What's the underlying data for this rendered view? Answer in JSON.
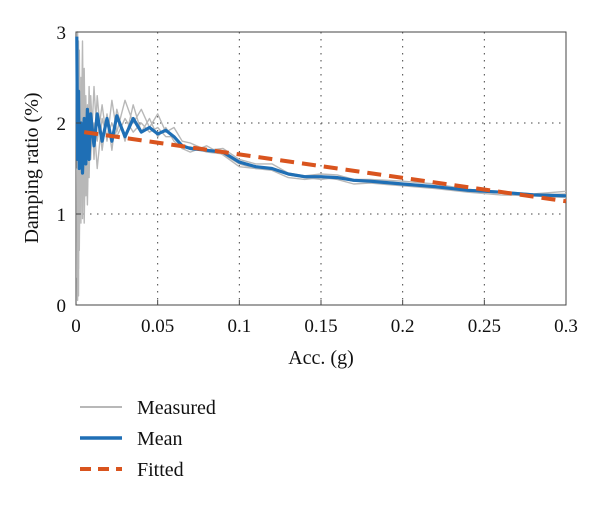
{
  "chart_data": {
    "type": "line",
    "xlabel": "Acc. (g)",
    "ylabel": "Damping ratio (%)",
    "xlim": [
      0,
      0.3
    ],
    "ylim": [
      0,
      3
    ],
    "x_ticks": [
      0,
      0.05,
      0.1,
      0.15,
      0.2,
      0.25,
      0.3
    ],
    "x_tick_labels": [
      "0",
      "0.05",
      "0.1",
      "0.15",
      "0.2",
      "0.25",
      "0.3"
    ],
    "y_ticks": [
      0,
      1,
      2,
      3
    ],
    "y_tick_labels": [
      "0",
      "1",
      "2",
      "3"
    ],
    "grid": "dotted",
    "legend_placement": "below",
    "series": [
      {
        "name": "Measured",
        "role": "measured",
        "color": "#b8b8b8",
        "curves": [
          [
            [
              0.0005,
              0.3
            ],
            [
              0.001,
              3.0
            ],
            [
              0.0015,
              0.1
            ],
            [
              0.002,
              2.8
            ],
            [
              0.003,
              0.9
            ],
            [
              0.004,
              2.6
            ],
            [
              0.005,
              1.1
            ],
            [
              0.006,
              2.3
            ],
            [
              0.007,
              1.3
            ],
            [
              0.008,
              2.4
            ],
            [
              0.009,
              1.6
            ],
            [
              0.011,
              2.4
            ],
            [
              0.013,
              1.8
            ],
            [
              0.016,
              2.2
            ],
            [
              0.019,
              1.8
            ],
            [
              0.022,
              2.25
            ],
            [
              0.025,
              1.9
            ],
            [
              0.03,
              2.25
            ],
            [
              0.035,
              2.0
            ],
            [
              0.04,
              2.15
            ],
            [
              0.045,
              1.95
            ],
            [
              0.05,
              2.1
            ],
            [
              0.055,
              1.9
            ],
            [
              0.06,
              1.95
            ],
            [
              0.065,
              1.8
            ],
            [
              0.07,
              1.78
            ],
            [
              0.08,
              1.7
            ],
            [
              0.09,
              1.72
            ],
            [
              0.1,
              1.6
            ],
            [
              0.11,
              1.55
            ],
            [
              0.12,
              1.55
            ],
            [
              0.13,
              1.45
            ],
            [
              0.14,
              1.42
            ],
            [
              0.15,
              1.44
            ],
            [
              0.16,
              1.43
            ],
            [
              0.17,
              1.38
            ],
            [
              0.18,
              1.38
            ],
            [
              0.2,
              1.36
            ],
            [
              0.22,
              1.33
            ],
            [
              0.24,
              1.27
            ],
            [
              0.26,
              1.25
            ],
            [
              0.28,
              1.22
            ],
            [
              0.3,
              1.25
            ]
          ],
          [
            [
              0.0005,
              1.5
            ],
            [
              0.001,
              0.05
            ],
            [
              0.0015,
              2.9
            ],
            [
              0.002,
              0.6
            ],
            [
              0.003,
              2.5
            ],
            [
              0.004,
              0.95
            ],
            [
              0.005,
              2.6
            ],
            [
              0.006,
              1.2
            ],
            [
              0.007,
              2.2
            ],
            [
              0.008,
              1.4
            ],
            [
              0.009,
              2.3
            ],
            [
              0.011,
              1.6
            ],
            [
              0.013,
              2.3
            ],
            [
              0.016,
              1.7
            ],
            [
              0.019,
              2.1
            ],
            [
              0.022,
              1.7
            ],
            [
              0.025,
              2.15
            ],
            [
              0.03,
              1.8
            ],
            [
              0.035,
              2.2
            ],
            [
              0.04,
              1.9
            ],
            [
              0.045,
              2.05
            ],
            [
              0.05,
              1.85
            ],
            [
              0.055,
              1.95
            ],
            [
              0.06,
              1.8
            ],
            [
              0.065,
              1.72
            ],
            [
              0.07,
              1.68
            ],
            [
              0.08,
              1.75
            ],
            [
              0.09,
              1.65
            ],
            [
              0.1,
              1.52
            ],
            [
              0.11,
              1.5
            ],
            [
              0.12,
              1.48
            ],
            [
              0.13,
              1.4
            ],
            [
              0.14,
              1.38
            ],
            [
              0.15,
              1.4
            ],
            [
              0.16,
              1.38
            ],
            [
              0.17,
              1.33
            ],
            [
              0.18,
              1.34
            ],
            [
              0.2,
              1.31
            ],
            [
              0.22,
              1.28
            ],
            [
              0.24,
              1.24
            ],
            [
              0.26,
              1.21
            ],
            [
              0.28,
              1.2
            ],
            [
              0.3,
              1.18
            ]
          ],
          [
            [
              0.0005,
              2.7
            ],
            [
              0.001,
              1.2
            ],
            [
              0.0015,
              0.4
            ],
            [
              0.002,
              2.2
            ],
            [
              0.003,
              1.4
            ],
            [
              0.004,
              2.9
            ],
            [
              0.005,
              0.9
            ],
            [
              0.006,
              2.0
            ],
            [
              0.007,
              1.1
            ],
            [
              0.008,
              2.1
            ],
            [
              0.009,
              1.7
            ],
            [
              0.011,
              2.0
            ],
            [
              0.013,
              1.5
            ],
            [
              0.016,
              2.05
            ],
            [
              0.019,
              1.85
            ],
            [
              0.022,
              2.0
            ],
            [
              0.025,
              1.85
            ],
            [
              0.03,
              2.05
            ],
            [
              0.035,
              1.9
            ],
            [
              0.04,
              2.0
            ],
            [
              0.045,
              1.9
            ],
            [
              0.05,
              1.95
            ],
            [
              0.055,
              1.85
            ],
            [
              0.06,
              1.85
            ],
            [
              0.065,
              1.72
            ],
            [
              0.07,
              1.74
            ],
            [
              0.08,
              1.68
            ],
            [
              0.09,
              1.66
            ],
            [
              0.1,
              1.55
            ],
            [
              0.11,
              1.5
            ],
            [
              0.12,
              1.5
            ],
            [
              0.13,
              1.43
            ],
            [
              0.14,
              1.4
            ],
            [
              0.15,
              1.38
            ],
            [
              0.16,
              1.4
            ],
            [
              0.17,
              1.36
            ],
            [
              0.18,
              1.35
            ],
            [
              0.2,
              1.33
            ],
            [
              0.22,
              1.31
            ],
            [
              0.24,
              1.26
            ],
            [
              0.26,
              1.23
            ],
            [
              0.28,
              1.21
            ],
            [
              0.3,
              1.22
            ]
          ]
        ]
      },
      {
        "name": "Mean",
        "role": "mean",
        "color": "#1f6fb5",
        "x": [
          0.0005,
          0.001,
          0.0015,
          0.002,
          0.003,
          0.004,
          0.005,
          0.006,
          0.007,
          0.008,
          0.009,
          0.011,
          0.013,
          0.016,
          0.019,
          0.022,
          0.025,
          0.03,
          0.035,
          0.04,
          0.045,
          0.05,
          0.055,
          0.06,
          0.065,
          0.07,
          0.08,
          0.09,
          0.1,
          0.11,
          0.12,
          0.13,
          0.14,
          0.15,
          0.16,
          0.17,
          0.18,
          0.2,
          0.22,
          0.24,
          0.26,
          0.28,
          0.3
        ],
        "y": [
          2.95,
          1.6,
          2.35,
          1.5,
          2.0,
          1.45,
          2.05,
          1.55,
          2.15,
          1.6,
          2.1,
          1.75,
          2.1,
          1.8,
          2.05,
          1.8,
          2.08,
          1.85,
          2.05,
          1.9,
          1.95,
          1.88,
          1.92,
          1.85,
          1.75,
          1.72,
          1.7,
          1.68,
          1.57,
          1.52,
          1.5,
          1.44,
          1.41,
          1.41,
          1.4,
          1.37,
          1.36,
          1.33,
          1.3,
          1.26,
          1.24,
          1.21,
          1.2
        ]
      },
      {
        "name": "Fitted",
        "role": "fitted",
        "color": "#d9541e",
        "x": [
          0.005,
          0.3
        ],
        "y": [
          1.9,
          1.14
        ]
      }
    ]
  }
}
